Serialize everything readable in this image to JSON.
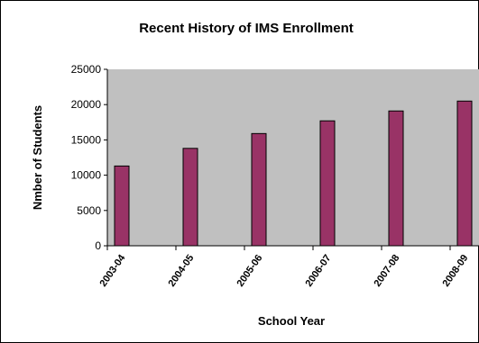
{
  "chart_data": {
    "type": "bar",
    "title": "Recent History of IMS Enrollment",
    "xlabel": "School Year",
    "ylabel": "Nmber of Students",
    "categories": [
      "2003-04",
      "2004-05",
      "2005-06",
      "2006-07",
      "2007-08",
      "2008-09"
    ],
    "values": [
      11300,
      13800,
      15900,
      17700,
      19100,
      20500
    ],
    "ylim": [
      0,
      25000
    ],
    "yticks": [
      0,
      5000,
      10000,
      15000,
      20000,
      25000
    ],
    "ytick_labels": [
      "0",
      "5000",
      "10000",
      "15000",
      "20000",
      "25000"
    ],
    "grid": false,
    "legend": "none",
    "colors": {
      "bar": "#993366",
      "plot_background": "#c0c0c0"
    }
  }
}
